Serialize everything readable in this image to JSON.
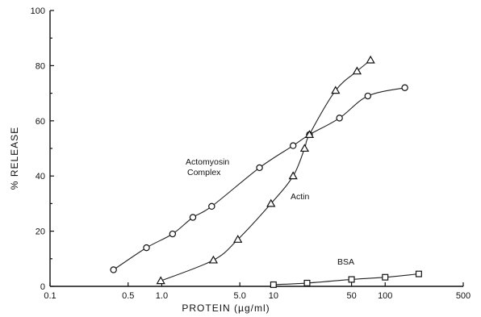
{
  "chart_data": {
    "type": "line",
    "title": "",
    "xlabel": "PROTEIN (µg/ml)",
    "ylabel": "% RELEASE",
    "x_scale": "log",
    "xlim": [
      0.1,
      500
    ],
    "ylim": [
      0,
      100
    ],
    "x_ticks": [
      0.1,
      0.5,
      1.0,
      5.0,
      10,
      50,
      100,
      500
    ],
    "x_tick_labels": [
      "0.1",
      "0.5",
      "1.0",
      "5.0",
      "10",
      "50",
      "100",
      "500"
    ],
    "y_ticks": [
      0,
      20,
      40,
      60,
      80,
      100
    ],
    "y_tick_labels": [
      "0",
      "20",
      "40",
      "60",
      "80",
      "100"
    ],
    "grid": false,
    "legend": "none",
    "series": [
      {
        "name": "Actomyosin Complex",
        "label_lines": [
          "Actomyosin",
          "Complex"
        ],
        "marker": "circle",
        "x": [
          0.37,
          0.73,
          1.25,
          1.9,
          2.8,
          7.5,
          15,
          21,
          39,
          70,
          150
        ],
        "y": [
          6,
          14,
          19,
          25,
          29,
          43,
          51,
          55,
          61,
          69,
          72
        ]
      },
      {
        "name": "Actin",
        "label_lines": [
          "Actin"
        ],
        "marker": "triangle",
        "x": [
          0.98,
          2.9,
          4.8,
          9.5,
          15,
          19,
          21,
          36,
          56,
          74
        ],
        "y": [
          2,
          9.5,
          17,
          30,
          40,
          50,
          55,
          71,
          78,
          82
        ]
      },
      {
        "name": "BSA",
        "label_lines": [
          "BSA"
        ],
        "marker": "square",
        "x": [
          10,
          20,
          50,
          100,
          200
        ],
        "y": [
          0.6,
          1.2,
          2.5,
          3.3,
          4.5
        ]
      }
    ]
  }
}
